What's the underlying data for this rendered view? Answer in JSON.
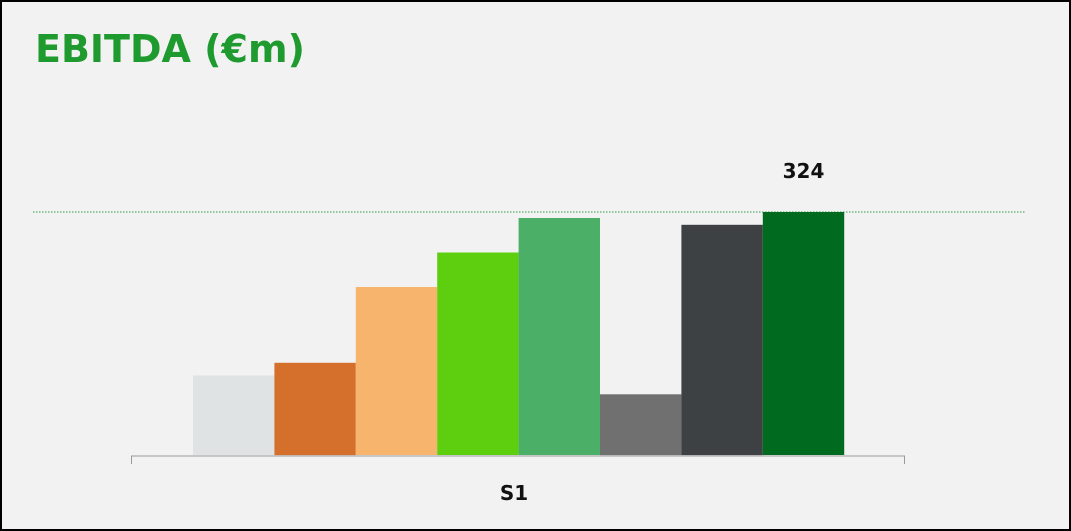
{
  "title": "EBITDA (€m)",
  "chart_data": {
    "type": "bar",
    "title": "EBITDA (€m)",
    "categories": [
      "S1"
    ],
    "series": [
      {
        "values": [
          106
        ],
        "color": "#dfe3e3"
      },
      {
        "values": [
          123
        ],
        "color": "#d4702b"
      },
      {
        "values": [
          224
        ],
        "color": "#f7b46d"
      },
      {
        "values": [
          270
        ],
        "color": "#5ecf0f"
      },
      {
        "values": [
          316
        ],
        "color": "#4caf67"
      },
      {
        "values": [
          81
        ],
        "color": "#707070"
      },
      {
        "values": [
          307
        ],
        "color": "#3d4144"
      },
      {
        "values": [
          324
        ],
        "color": "#006a1f"
      }
    ],
    "data_labels": [
      {
        "series_index": 7,
        "text": "324"
      }
    ],
    "reference_line": {
      "value": 324,
      "color": "#2e9c4a",
      "style": "dotted"
    },
    "ylim": [
      0,
      350
    ],
    "xlabel": "",
    "ylabel": "",
    "grid": false,
    "legend": "none"
  }
}
